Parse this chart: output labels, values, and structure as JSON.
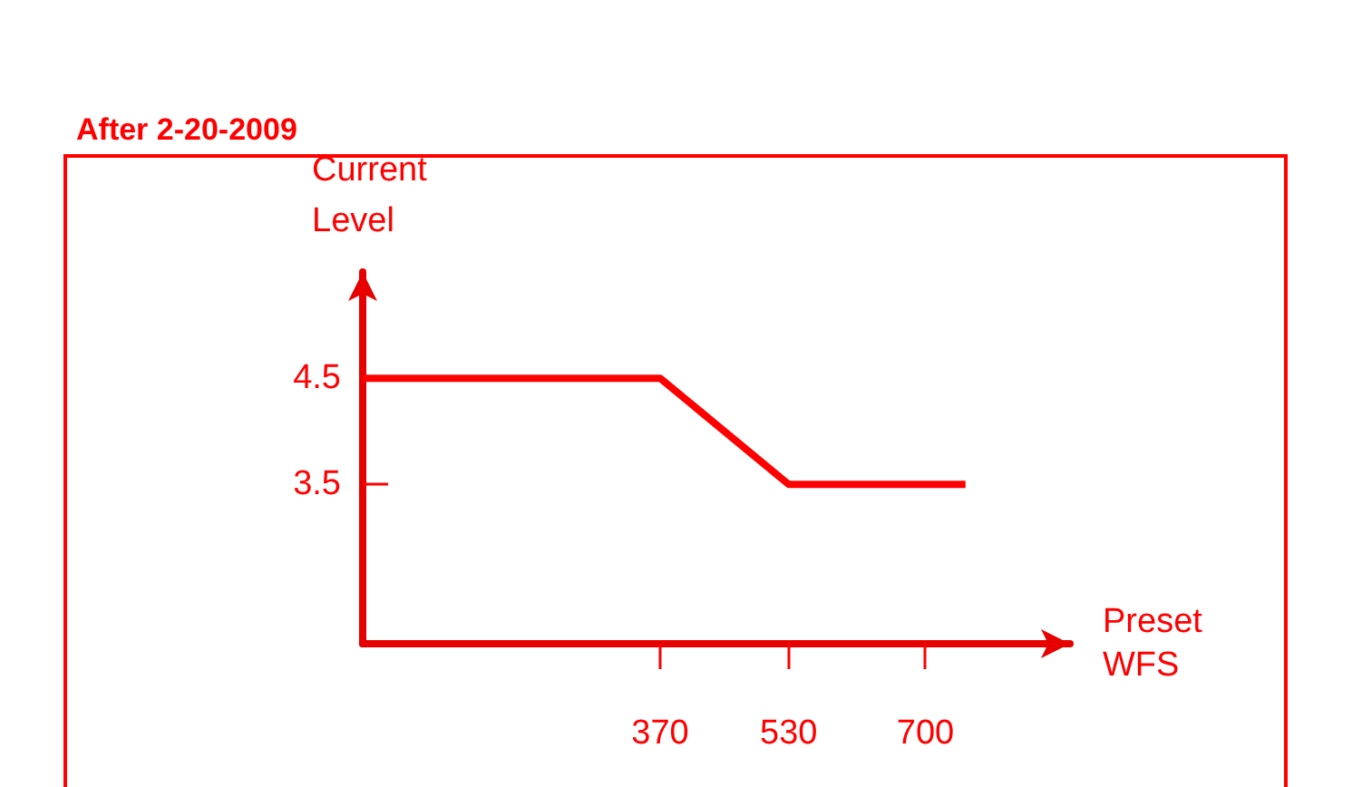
{
  "chart_data": {
    "type": "line",
    "title": "After 2-20-2009",
    "xlabel": "Preset\nWFS",
    "ylabel": "Current\nLevel",
    "x": [
      0,
      370,
      530,
      750
    ],
    "series": [
      {
        "color": "#ff0000",
        "values": [
          4.5,
          4.5,
          3.5,
          3.5
        ]
      }
    ],
    "xlim": [
      0,
      880
    ],
    "xticks": [
      370,
      530,
      700
    ],
    "ylim": [
      2,
      5.5
    ],
    "yticks": [
      3.5,
      4.5
    ],
    "grid": false,
    "marker": "none",
    "line_style": "solid"
  }
}
